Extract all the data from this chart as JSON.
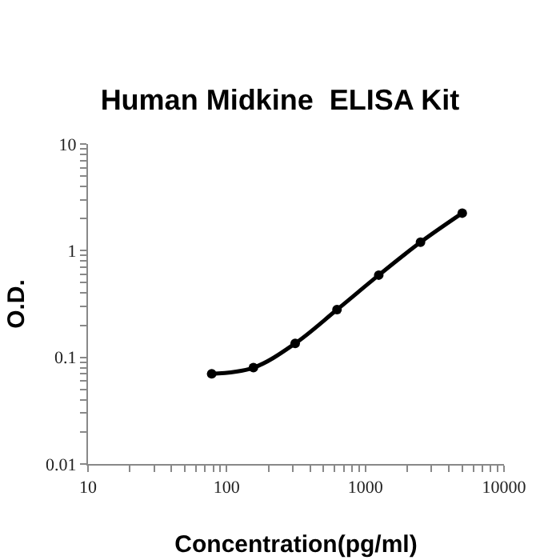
{
  "chart_data": {
    "type": "line",
    "title": "Human Midkine  ELISA Kit",
    "xlabel": "Concentration(pg/ml)",
    "ylabel": "O.D.",
    "x": [
      78,
      156,
      312,
      625,
      1250,
      2500,
      5000
    ],
    "series": [
      {
        "color": "#000000",
        "values": [
          0.07,
          0.08,
          0.135,
          0.28,
          0.59,
          1.2,
          2.25
        ]
      }
    ],
    "log": "xy",
    "grid": false,
    "marker": "circle",
    "line_style": "solid",
    "xlim": [
      10,
      10000
    ],
    "ylim": [
      0.01,
      10
    ],
    "xticks": [
      10,
      {
        "value": 20,
        "label": null
      },
      {
        "value": 30,
        "label": null
      },
      {
        "value": 40,
        "label": null
      },
      {
        "value": 50,
        "label": null
      },
      {
        "value": 60,
        "label": null
      },
      {
        "value": 70,
        "label": null
      },
      {
        "value": 80,
        "label": null
      },
      {
        "value": 90,
        "label": null
      },
      100,
      {
        "value": 200,
        "label": null
      },
      {
        "value": 300,
        "label": null
      },
      {
        "value": 400,
        "label": null
      },
      {
        "value": 500,
        "label": null
      },
      {
        "value": 600,
        "label": null
      },
      {
        "value": 700,
        "label": null
      },
      {
        "value": 800,
        "label": null
      },
      {
        "value": 900,
        "label": null
      },
      1000,
      {
        "value": 2000,
        "label": null
      },
      {
        "value": 3000,
        "label": null
      },
      {
        "value": 4000,
        "label": null
      },
      {
        "value": 5000,
        "label": null
      },
      {
        "value": 6000,
        "label": null
      },
      {
        "value": 7000,
        "label": null
      },
      {
        "value": 8000,
        "label": null
      },
      {
        "value": 9000,
        "label": null
      },
      10000
    ],
    "yticks": [
      0.01,
      {
        "value": 0.02,
        "label": null
      },
      {
        "value": 0.03,
        "label": null
      },
      {
        "value": 0.04,
        "label": null
      },
      {
        "value": 0.05,
        "label": null
      },
      {
        "value": 0.06,
        "label": null
      },
      {
        "value": 0.07,
        "label": null
      },
      {
        "value": 0.08,
        "label": null
      },
      {
        "value": 0.09,
        "label": null
      },
      0.1,
      {
        "value": 0.2,
        "label": null
      },
      {
        "value": 0.3,
        "label": null
      },
      {
        "value": 0.4,
        "label": null
      },
      {
        "value": 0.5,
        "label": null
      },
      {
        "value": 0.6,
        "label": null
      },
      {
        "value": 0.7,
        "label": null
      },
      {
        "value": 0.8,
        "label": null
      },
      {
        "value": 0.9,
        "label": null
      },
      1,
      {
        "value": 2,
        "label": null
      },
      {
        "value": 3,
        "label": null
      },
      {
        "value": 4,
        "label": null
      },
      {
        "value": 5,
        "label": null
      },
      {
        "value": 6,
        "label": null
      },
      {
        "value": 7,
        "label": null
      },
      {
        "value": 8,
        "label": null
      },
      {
        "value": 9,
        "label": null
      },
      10
    ]
  }
}
